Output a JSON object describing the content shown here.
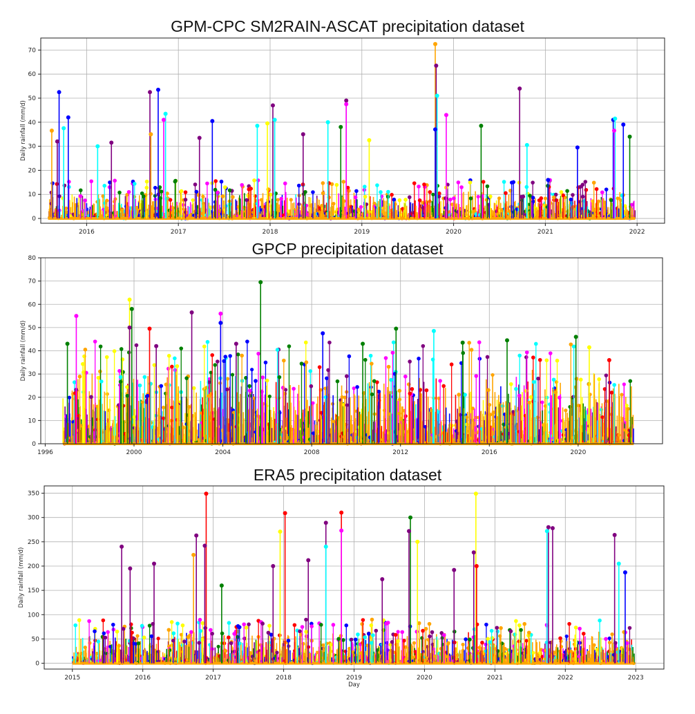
{
  "colors": [
    "#0000ff",
    "#ff0000",
    "#008000",
    "#800080",
    "#ff00ff",
    "#00ffff",
    "#ffff00",
    "#ffa500"
  ],
  "chart_data": [
    {
      "type": "line",
      "title": "GPM-CPC SM2RAIN-ASCAT precipitation dataset",
      "xlabel": "",
      "ylabel": "Daily rainfall (mm/d)",
      "xlim": [
        2015.5,
        2022.3
      ],
      "ylim": [
        -2,
        75
      ],
      "x_ticks": [
        2016,
        2017,
        2018,
        2019,
        2020,
        2021,
        2022
      ],
      "x_tick_labels": [
        "2016",
        "2017",
        "2018",
        "2019",
        "2020",
        "2021",
        "2022"
      ],
      "y_ticks": [
        0,
        10,
        20,
        30,
        40,
        50,
        60,
        70
      ],
      "y_tick_labels": [
        "0",
        "10",
        "20",
        "30",
        "40",
        "50",
        "60",
        "70"
      ],
      "grid": true,
      "legend": "none",
      "data_range": [
        2015.58,
        2021.98
      ],
      "base_level": 8,
      "peaks": [
        {
          "x": 2015.62,
          "y": 36.5,
          "c": 7
        },
        {
          "x": 2015.7,
          "y": 52.5,
          "c": 0
        },
        {
          "x": 2015.8,
          "y": 42.0,
          "c": 0
        },
        {
          "x": 2015.68,
          "y": 32.0,
          "c": 3
        },
        {
          "x": 2015.75,
          "y": 37.5,
          "c": 5
        },
        {
          "x": 2016.12,
          "y": 30.0,
          "c": 5
        },
        {
          "x": 2016.27,
          "y": 31.5,
          "c": 3
        },
        {
          "x": 2016.69,
          "y": 52.5,
          "c": 3
        },
        {
          "x": 2016.78,
          "y": 53.5,
          "c": 0
        },
        {
          "x": 2016.86,
          "y": 43.5,
          "c": 5
        },
        {
          "x": 2016.84,
          "y": 41.0,
          "c": 4
        },
        {
          "x": 2016.7,
          "y": 35.0,
          "c": 7
        },
        {
          "x": 2017.37,
          "y": 40.5,
          "c": 0
        },
        {
          "x": 2017.23,
          "y": 33.5,
          "c": 3
        },
        {
          "x": 2017.86,
          "y": 38.5,
          "c": 5
        },
        {
          "x": 2017.97,
          "y": 39.5,
          "c": 6
        },
        {
          "x": 2018.03,
          "y": 47.0,
          "c": 3
        },
        {
          "x": 2018.05,
          "y": 41.0,
          "c": 5
        },
        {
          "x": 2018.36,
          "y": 35.0,
          "c": 3
        },
        {
          "x": 2018.63,
          "y": 40.0,
          "c": 5
        },
        {
          "x": 2018.77,
          "y": 38.0,
          "c": 2
        },
        {
          "x": 2018.83,
          "y": 49.0,
          "c": 3
        },
        {
          "x": 2018.83,
          "y": 47.5,
          "c": 4
        },
        {
          "x": 2019.08,
          "y": 32.5,
          "c": 6
        },
        {
          "x": 2019.8,
          "y": 72.5,
          "c": 7
        },
        {
          "x": 2019.81,
          "y": 63.5,
          "c": 3
        },
        {
          "x": 2019.82,
          "y": 51.0,
          "c": 5
        },
        {
          "x": 2019.92,
          "y": 43.0,
          "c": 4
        },
        {
          "x": 2019.8,
          "y": 37.0,
          "c": 0
        },
        {
          "x": 2020.3,
          "y": 38.5,
          "c": 2
        },
        {
          "x": 2020.72,
          "y": 54.0,
          "c": 3
        },
        {
          "x": 2020.8,
          "y": 30.5,
          "c": 5
        },
        {
          "x": 2021.35,
          "y": 29.5,
          "c": 0
        },
        {
          "x": 2021.74,
          "y": 41.0,
          "c": 0
        },
        {
          "x": 2021.76,
          "y": 41.5,
          "c": 5
        },
        {
          "x": 2021.75,
          "y": 36.5,
          "c": 4
        },
        {
          "x": 2021.85,
          "y": 39.0,
          "c": 0
        },
        {
          "x": 2021.92,
          "y": 34.0,
          "c": 2
        },
        {
          "x": 2021.03,
          "y": 16.0,
          "c": 0
        }
      ]
    },
    {
      "type": "line",
      "title": "GPCP precipitation dataset",
      "xlabel": "",
      "ylabel": "Daily rainfall (mm/d)",
      "xlim": [
        1995.8,
        2023.8
      ],
      "ylim": [
        0,
        80
      ],
      "x_ticks": [
        1996,
        2000,
        2004,
        2008,
        2012,
        2016,
        2020
      ],
      "x_tick_labels": [
        "1996",
        "2000",
        "2004",
        "2008",
        "2012",
        "2016",
        "2020"
      ],
      "y_ticks": [
        0,
        10,
        20,
        30,
        40,
        50,
        60,
        70,
        80
      ],
      "y_tick_labels": [
        "0",
        "10",
        "20",
        "30",
        "40",
        "50",
        "60",
        "70",
        "80"
      ],
      "grid": true,
      "legend": "none",
      "data_range": [
        1996.8,
        2022.5
      ],
      "base_level": 22,
      "peaks": [
        {
          "x": 1997.4,
          "y": 55.0,
          "c": 4
        },
        {
          "x": 1999.8,
          "y": 62.0,
          "c": 6
        },
        {
          "x": 1999.9,
          "y": 58.0,
          "c": 2
        },
        {
          "x": 1999.8,
          "y": 50.0,
          "c": 3
        },
        {
          "x": 2000.7,
          "y": 49.5,
          "c": 1
        },
        {
          "x": 2002.6,
          "y": 56.5,
          "c": 3
        },
        {
          "x": 2003.9,
          "y": 56.0,
          "c": 4
        },
        {
          "x": 2003.9,
          "y": 52.0,
          "c": 0
        },
        {
          "x": 2005.7,
          "y": 69.5,
          "c": 2
        },
        {
          "x": 2008.5,
          "y": 47.5,
          "c": 0
        },
        {
          "x": 2011.8,
          "y": 49.5,
          "c": 2
        },
        {
          "x": 2013.5,
          "y": 48.5,
          "c": 5
        },
        {
          "x": 2016.8,
          "y": 44.5,
          "c": 2
        },
        {
          "x": 2019.9,
          "y": 46.0,
          "c": 2
        },
        {
          "x": 2020.5,
          "y": 41.5,
          "c": 6
        },
        {
          "x": 1997.0,
          "y": 43.0,
          "c": 2
        },
        {
          "x": 2001.0,
          "y": 42.0,
          "c": 3
        },
        {
          "x": 2004.6,
          "y": 43.0,
          "c": 3
        },
        {
          "x": 2010.3,
          "y": 43.0,
          "c": 2
        },
        {
          "x": 2014.8,
          "y": 43.5,
          "c": 2
        },
        {
          "x": 2021.4,
          "y": 36.0,
          "c": 1
        }
      ]
    },
    {
      "type": "line",
      "title": "ERA5 precipitation dataset",
      "xlabel": "Day",
      "ylabel": "Daily rainfall (mm/d)",
      "xlim": [
        2014.6,
        2023.4
      ],
      "ylim": [
        -12,
        365
      ],
      "x_ticks": [
        2015,
        2016,
        2017,
        2018,
        2019,
        2020,
        2021,
        2022,
        2023
      ],
      "x_tick_labels": [
        "2015",
        "2016",
        "2017",
        "2018",
        "2019",
        "2020",
        "2021",
        "2022",
        "2023"
      ],
      "y_ticks": [
        0,
        50,
        100,
        150,
        200,
        250,
        300,
        350
      ],
      "y_tick_labels": [
        "0",
        "50",
        "100",
        "150",
        "200",
        "250",
        "300",
        "350"
      ],
      "grid": true,
      "legend": "none",
      "data_range": [
        2015.0,
        2022.98
      ],
      "base_level": 45,
      "peaks": [
        {
          "x": 2015.7,
          "y": 240,
          "c": 3
        },
        {
          "x": 2015.82,
          "y": 195,
          "c": 3
        },
        {
          "x": 2016.16,
          "y": 205,
          "c": 3
        },
        {
          "x": 2016.76,
          "y": 263,
          "c": 3
        },
        {
          "x": 2016.72,
          "y": 223,
          "c": 7
        },
        {
          "x": 2016.9,
          "y": 349,
          "c": 1
        },
        {
          "x": 2016.88,
          "y": 242,
          "c": 3
        },
        {
          "x": 2017.85,
          "y": 200,
          "c": 3
        },
        {
          "x": 2017.95,
          "y": 271,
          "c": 6
        },
        {
          "x": 2018.02,
          "y": 309,
          "c": 1
        },
        {
          "x": 2018.35,
          "y": 212,
          "c": 3
        },
        {
          "x": 2018.6,
          "y": 289,
          "c": 3
        },
        {
          "x": 2018.6,
          "y": 240,
          "c": 5
        },
        {
          "x": 2018.82,
          "y": 310,
          "c": 1
        },
        {
          "x": 2018.82,
          "y": 273,
          "c": 4
        },
        {
          "x": 2019.8,
          "y": 300,
          "c": 2
        },
        {
          "x": 2019.78,
          "y": 272,
          "c": 3
        },
        {
          "x": 2019.9,
          "y": 250,
          "c": 6
        },
        {
          "x": 2020.73,
          "y": 349,
          "c": 6
        },
        {
          "x": 2020.7,
          "y": 228,
          "c": 3
        },
        {
          "x": 2020.74,
          "y": 200,
          "c": 1
        },
        {
          "x": 2021.76,
          "y": 280,
          "c": 3
        },
        {
          "x": 2021.74,
          "y": 272,
          "c": 5
        },
        {
          "x": 2021.82,
          "y": 278,
          "c": 3
        },
        {
          "x": 2022.7,
          "y": 264,
          "c": 3
        },
        {
          "x": 2022.76,
          "y": 205,
          "c": 5
        },
        {
          "x": 2022.85,
          "y": 187,
          "c": 0
        },
        {
          "x": 2019.4,
          "y": 173,
          "c": 3
        },
        {
          "x": 2020.42,
          "y": 192,
          "c": 3
        },
        {
          "x": 2017.12,
          "y": 160,
          "c": 2
        }
      ]
    }
  ]
}
